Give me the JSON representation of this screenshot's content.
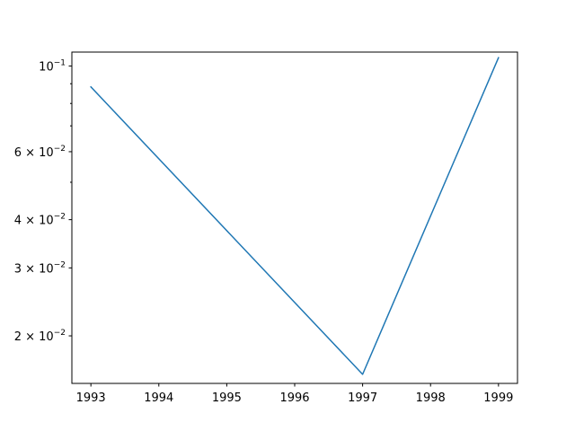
{
  "chart_data": {
    "type": "line",
    "title": "",
    "xlabel": "",
    "ylabel": "",
    "yscale": "log",
    "grid": false,
    "legend": "none",
    "xlim": [
      1992.72,
      1999.28
    ],
    "ylim": [
      0.01506,
      0.1087
    ],
    "x_ticks": [
      1993,
      1994,
      1995,
      1996,
      1997,
      1998,
      1999
    ],
    "x_tick_labels": [
      "1993",
      "1994",
      "1995",
      "1996",
      "1997",
      "1998",
      "1999"
    ],
    "y_ticks": [
      0.1,
      0.06,
      0.04,
      0.03,
      0.02
    ],
    "y_tick_labels": [
      {
        "mantissa": "",
        "exp": "−1"
      },
      {
        "mantissa": "6 × ",
        "exp": "−2"
      },
      {
        "mantissa": "4 × ",
        "exp": "−2"
      },
      {
        "mantissa": "3 × ",
        "exp": "−2"
      },
      {
        "mantissa": "2 × ",
        "exp": "−2"
      }
    ],
    "y_minor_ticks": [
      0.09,
      0.08,
      0.07,
      0.05
    ],
    "series": [
      {
        "color": "#1f77b4",
        "x": [
          1993,
          1997,
          1999
        ],
        "y": [
          0.0883,
          0.0159,
          0.1051
        ]
      }
    ]
  }
}
